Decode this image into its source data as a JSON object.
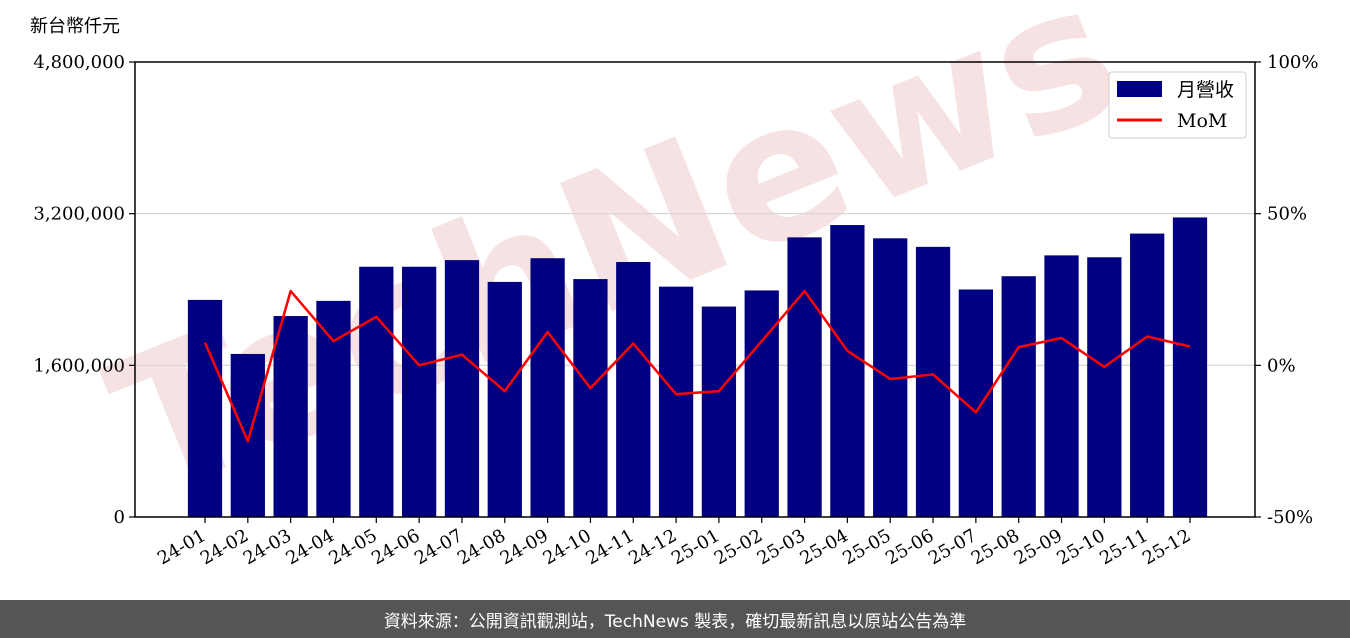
{
  "unit_label": "新台幣仟元",
  "watermark": "TechNews",
  "footer_text": "資料來源：公開資訊觀測站，TechNews 製表，確切最新訊息以原站公告為準",
  "colors": {
    "bar": "#000080",
    "line": "#ff0000",
    "grid": "#d3d3d3",
    "footer_bg": "#555555",
    "watermark": "#f2dede"
  },
  "chart_data": {
    "type": "bar",
    "categories": [
      "24-01",
      "24-02",
      "24-03",
      "24-04",
      "24-05",
      "24-06",
      "24-07",
      "24-08",
      "24-09",
      "24-10",
      "24-11",
      "24-12",
      "25-01",
      "25-02",
      "25-03",
      "25-04",
      "25-05",
      "25-06",
      "25-07",
      "25-08",
      "25-09",
      "25-10",
      "25-11",
      "25-12"
    ],
    "series": [
      {
        "name": "月營收",
        "type": "bar",
        "axis": "left",
        "values": [
          2290000,
          1720000,
          2120000,
          2280000,
          2640000,
          2640000,
          2710000,
          2480000,
          2730000,
          2510000,
          2690000,
          2430000,
          2220000,
          2390000,
          2950000,
          3080000,
          2940000,
          2850000,
          2400000,
          2540000,
          2760000,
          2740000,
          2990000,
          3160000
        ]
      },
      {
        "name": "MoM",
        "type": "line",
        "axis": "right",
        "unit": "%",
        "values": [
          7.5,
          -25,
          24.5,
          8,
          16,
          0,
          3.5,
          -8.5,
          11,
          -7.5,
          7.2,
          -9.5,
          -8.5,
          8,
          24.5,
          4.8,
          -4.5,
          -3,
          -15.5,
          6,
          9,
          -0.5,
          9.5,
          6.2
        ]
      }
    ],
    "y_left": {
      "ylim": [
        0,
        4800000
      ],
      "ticks": [
        0,
        1600000,
        3200000,
        4800000
      ],
      "tick_labels": [
        "0",
        "1,600,000",
        "3,200,000",
        "4,800,000"
      ]
    },
    "y_right": {
      "ylim": [
        -50,
        100
      ],
      "ticks": [
        -50,
        0,
        50,
        100
      ],
      "tick_labels": [
        "-50%",
        "0%",
        "50%",
        "100%"
      ]
    },
    "grid": true,
    "legend_position": "top-right"
  }
}
